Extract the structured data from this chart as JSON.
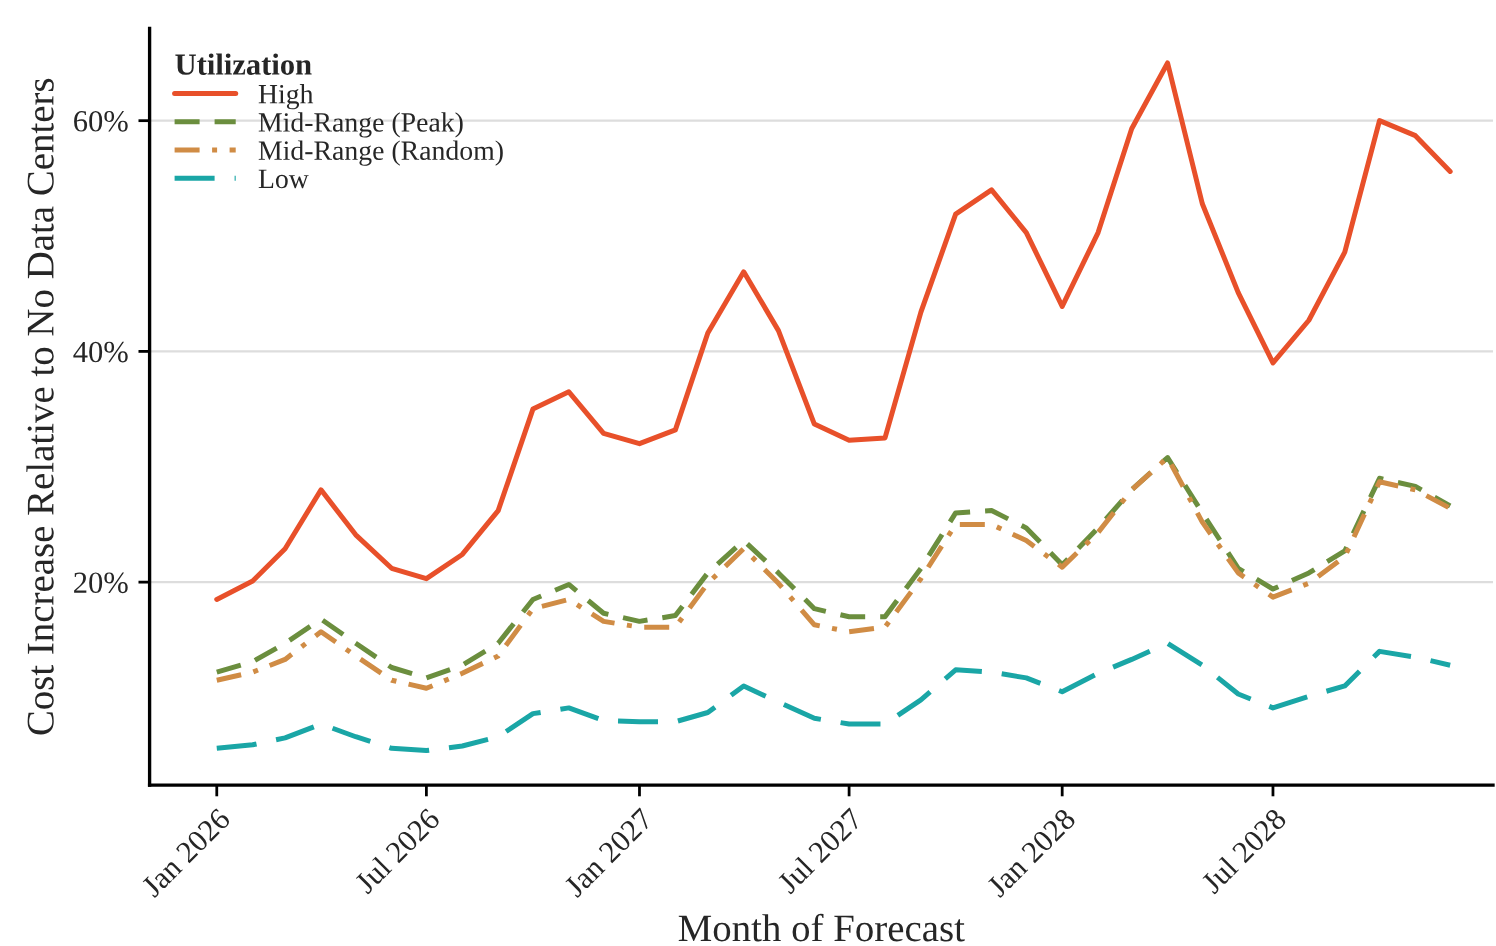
{
  "chart_data": {
    "type": "line",
    "xlabel": "Month of Forecast",
    "ylabel": "Cost Increase Relative to No Data Centers",
    "legend_title": "Utilization",
    "legend": "top left",
    "grid": "y",
    "x": [
      "2026-01",
      "2026-02",
      "2026-03",
      "2026-04",
      "2026-05",
      "2026-06",
      "2026-07",
      "2026-08",
      "2026-09",
      "2026-10",
      "2026-11",
      "2026-12",
      "2027-01",
      "2027-02",
      "2027-03",
      "2027-04",
      "2027-05",
      "2027-06",
      "2027-07",
      "2027-08",
      "2027-09",
      "2027-10",
      "2027-11",
      "2027-12",
      "2028-01",
      "2028-02",
      "2028-03",
      "2028-04",
      "2028-05",
      "2028-06",
      "2028-07",
      "2028-08",
      "2028-09",
      "2028-10",
      "2028-11",
      "2028-12"
    ],
    "xlim": [
      "2025-11-04",
      "2029-01-07"
    ],
    "xticks": [
      {
        "value": "2026-01",
        "label": "Jan 2026"
      },
      {
        "value": "2026-07",
        "label": "Jul 2026"
      },
      {
        "value": "2027-01",
        "label": "Jan 2027"
      },
      {
        "value": "2027-07",
        "label": "Jul 2027"
      },
      {
        "value": "2028-01",
        "label": "Jan 2028"
      },
      {
        "value": "2028-07",
        "label": "Jul 2028"
      }
    ],
    "ylim": [
      2.4,
      68
    ],
    "yticks": [
      {
        "value": 20,
        "label": "20%"
      },
      {
        "value": 40,
        "label": "40%"
      },
      {
        "value": 60,
        "label": "60%"
      }
    ],
    "series": [
      {
        "name": "High",
        "color": "#e8502a",
        "line_style": "solid",
        "values": [
          18.5,
          20.1,
          22.9,
          28.0,
          24.1,
          21.2,
          20.3,
          22.4,
          26.2,
          35.0,
          36.5,
          32.9,
          32.0,
          33.2,
          41.6,
          46.9,
          41.8,
          33.7,
          32.3,
          32.5,
          43.4,
          51.9,
          54.0,
          50.3,
          43.9,
          50.3,
          59.3,
          65.0,
          52.8,
          45.1,
          39.0,
          42.7,
          48.6,
          60.0,
          58.7,
          55.6
        ]
      },
      {
        "name": "Mid-Range (Peak)",
        "color": "#6b8e3e",
        "line_style": "dashed",
        "values": [
          12.2,
          13.1,
          14.7,
          16.8,
          14.7,
          12.6,
          11.7,
          12.8,
          14.7,
          18.5,
          19.8,
          17.3,
          16.6,
          17.1,
          20.8,
          23.6,
          20.8,
          17.7,
          17.0,
          17.0,
          21.2,
          26.0,
          26.2,
          24.7,
          21.5,
          24.7,
          28.0,
          30.8,
          26.0,
          21.2,
          19.4,
          20.8,
          22.7,
          29.0,
          28.3,
          26.6
        ]
      },
      {
        "name": "Mid-Range (Random)",
        "color": "#d08c45",
        "line_style": "dashdot",
        "values": [
          11.5,
          12.2,
          13.3,
          15.7,
          13.6,
          11.5,
          10.8,
          12.1,
          13.6,
          17.7,
          18.5,
          16.6,
          16.1,
          16.1,
          19.9,
          22.9,
          19.9,
          16.3,
          15.7,
          16.1,
          20.3,
          25.0,
          25.0,
          23.6,
          21.3,
          24.3,
          28.0,
          30.8,
          25.2,
          20.8,
          18.7,
          19.9,
          22.2,
          28.7,
          28.0,
          26.4
        ]
      },
      {
        "name": "Low",
        "color": "#1aa6a6",
        "line_style": "longdash",
        "values": [
          5.6,
          5.9,
          6.5,
          7.7,
          6.6,
          5.6,
          5.4,
          5.8,
          6.6,
          8.6,
          9.1,
          8.0,
          7.9,
          7.9,
          8.7,
          11.0,
          9.6,
          8.2,
          7.7,
          7.7,
          9.8,
          12.4,
          12.2,
          11.7,
          10.5,
          12.1,
          13.3,
          14.7,
          12.8,
          10.3,
          9.1,
          10.1,
          11.0,
          14.0,
          13.5,
          12.8
        ]
      }
    ]
  }
}
